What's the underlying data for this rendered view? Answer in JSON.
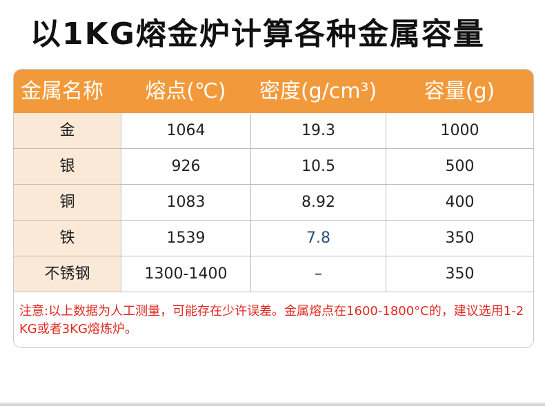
{
  "title": "以1KG熔金炉计算各种金属容量",
  "table": {
    "headers": [
      "金属名称",
      "熔点(℃)",
      "密度(g/cm³)",
      "容量(g)"
    ],
    "rows": [
      [
        "金",
        "1064",
        "19.3",
        "1000"
      ],
      [
        "银",
        "926",
        "10.5",
        "500"
      ],
      [
        "铜",
        "1083",
        "8.92",
        "400"
      ],
      [
        "铁",
        "1539",
        "7.8",
        "350"
      ],
      [
        "不锈钢",
        "1300-1400",
        "–",
        "350"
      ]
    ]
  },
  "note": "注意:以上数据为人工测量，可能存在少许误差。金属熔点在1600-1800°C的，建议选用1-2KG或者3KG熔炼炉。",
  "colors": {
    "header_bg": "#f29a3b",
    "first_col_bg": "#fbe9d8",
    "note_text": "#e02a22"
  }
}
